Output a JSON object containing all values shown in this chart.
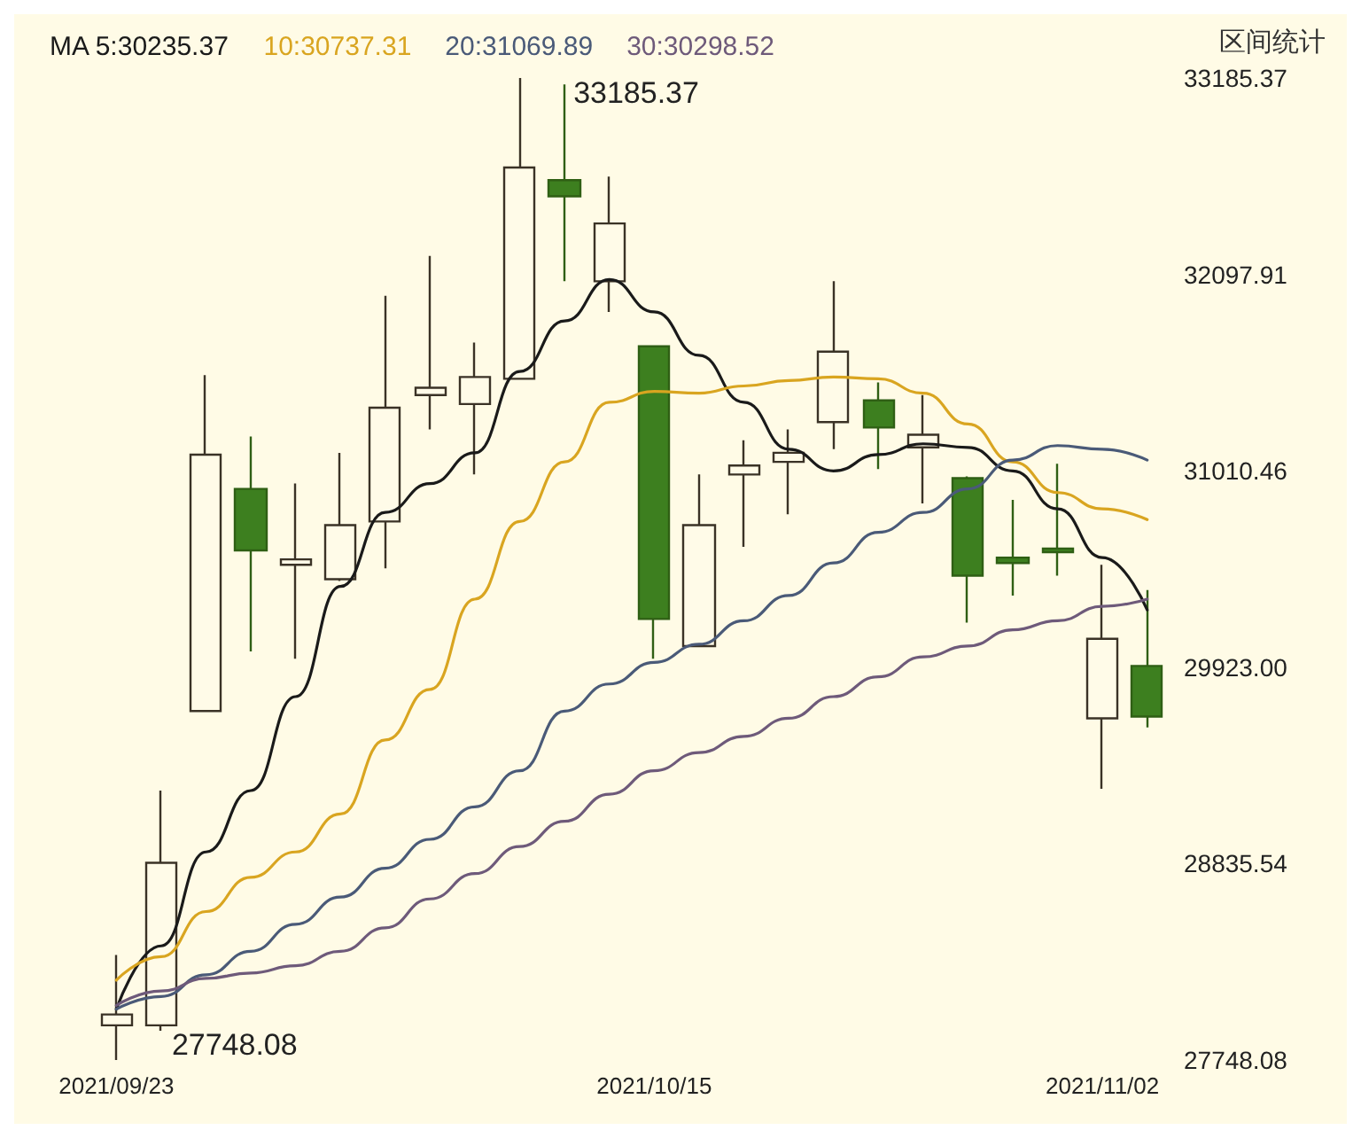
{
  "chart_data": {
    "type": "candlestick",
    "categories": [
      "2021/09/23",
      null,
      null,
      null,
      null,
      null,
      null,
      null,
      null,
      null,
      null,
      null,
      "2021/10/15",
      null,
      null,
      null,
      null,
      null,
      null,
      null,
      null,
      null,
      "2021/11/02",
      null
    ],
    "colors": [
      "#fffbe8",
      "#fffbe8",
      "#fffbe8",
      "#3d7f1f",
      "#fffbe8",
      "#fffbe8",
      "#fffbe8",
      "#fffbe8",
      "#fffbe8",
      "#fffbe8",
      "#3d7f1f",
      "#fffbe8",
      "#3d7f1f",
      "#fffbe8",
      "#fffbe8",
      "#fffbe8",
      "#fffbe8",
      "#3d7f1f",
      "#fffbe8",
      "#3d7f1f",
      "#3d7f1f",
      "#3d7f1f",
      "#fffbe8",
      "#3d7f1f"
    ],
    "ohlc": [
      [
        27940,
        28330,
        27748.08,
        28000
      ],
      [
        27940,
        29240,
        27910,
        28840
      ],
      [
        29680,
        31540,
        29680,
        31100
      ],
      [
        30910,
        31200,
        30010,
        30570
      ],
      [
        30490,
        30940,
        29970,
        30520
      ],
      [
        30410,
        31110,
        30400,
        30710
      ],
      [
        30730,
        31980,
        30470,
        31360
      ],
      [
        31430,
        32200,
        31240,
        31470
      ],
      [
        31380,
        31720,
        30990,
        31530
      ],
      [
        31520,
        33185.37,
        31520,
        32690
      ],
      [
        32620,
        33150,
        32060,
        32530
      ],
      [
        32060,
        32640,
        31890,
        32380
      ],
      [
        31700,
        31700,
        29970,
        30190
      ],
      [
        30040,
        30990,
        30040,
        30710
      ],
      [
        30990,
        31180,
        30590,
        31040
      ],
      [
        31060,
        31240,
        30770,
        31110
      ],
      [
        31280,
        32060,
        31130,
        31670
      ],
      [
        31400,
        31500,
        31020,
        31250
      ],
      [
        31140,
        31430,
        30830,
        31210
      ],
      [
        30970,
        30980,
        30170,
        30430
      ],
      [
        30530,
        30850,
        30320,
        30500
      ],
      [
        30580,
        31050,
        30430,
        30560
      ],
      [
        29640,
        30490,
        29250,
        30080
      ],
      [
        29930,
        30350,
        29590,
        29650
      ]
    ],
    "series": [
      {
        "type": "line",
        "name": "MA 5:30235.37",
        "color": "#1a1a1a",
        "values": [
          28030,
          28380,
          28900,
          29240,
          29760,
          30370,
          30780,
          30940,
          31110,
          31560,
          31840,
          32070,
          31890,
          31650,
          31390,
          31130,
          31010,
          31100,
          31160,
          31140,
          31010,
          30800,
          30530,
          30240
        ]
      },
      {
        "type": "line",
        "name": "10:30737.31",
        "color": "#d9a520",
        "values": [
          28190,
          28320,
          28570,
          28760,
          28900,
          29110,
          29520,
          29800,
          30300,
          30730,
          31060,
          31390,
          31450,
          31440,
          31480,
          31510,
          31530,
          31520,
          31440,
          31270,
          31060,
          30890,
          30800,
          30740
        ]
      },
      {
        "type": "line",
        "name": "20:31069.89",
        "color": "#4a5a78",
        "values": [
          28030,
          28100,
          28220,
          28350,
          28500,
          28650,
          28810,
          28970,
          29150,
          29350,
          29680,
          29830,
          29950,
          30050,
          30180,
          30320,
          30500,
          30670,
          30780,
          30910,
          31070,
          31150,
          31130,
          31070
        ]
      },
      {
        "type": "line",
        "name": "30:30298.52",
        "color": "#6e5a7a",
        "values": [
          28050,
          28130,
          28200,
          28230,
          28270,
          28350,
          28480,
          28640,
          28780,
          28930,
          29070,
          29220,
          29350,
          29450,
          29540,
          29640,
          29760,
          29870,
          29980,
          30040,
          30130,
          30180,
          30260,
          30300
        ]
      }
    ],
    "ylim": [
      27748.08,
      33185.37
    ],
    "yticks": [
      27748.08,
      28835.54,
      {
        "value": 29923,
        "label": "29923.00"
      },
      31010.46,
      32097.91,
      33185.37
    ],
    "annotations": [
      "33185.37",
      "27748.08",
      "区间统计"
    ],
    "legend": "top left",
    "marker": "none",
    "line_style": "solid"
  }
}
